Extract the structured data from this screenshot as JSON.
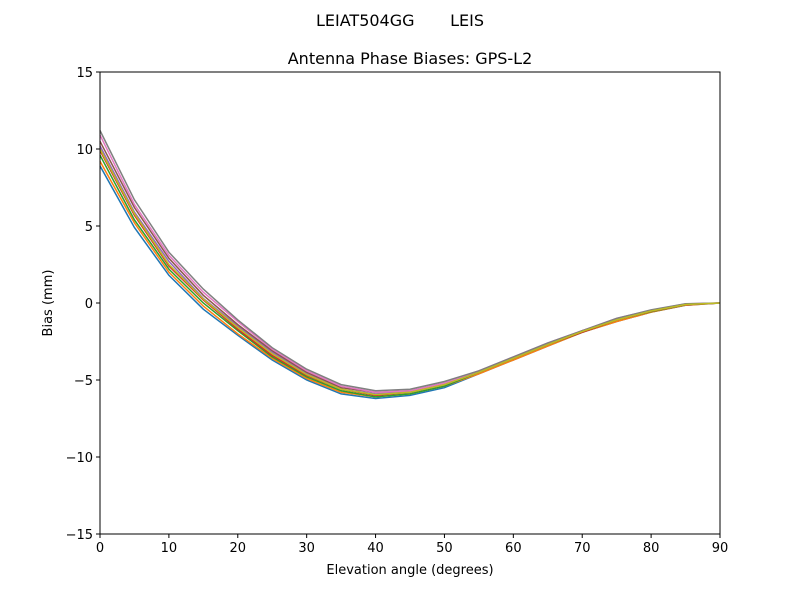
{
  "chart_data": {
    "type": "line",
    "suptitle": "LEIAT504GG       LEIS",
    "title": "Antenna Phase Biases: GPS-L2",
    "xlabel": "Elevation angle (degrees)",
    "ylabel": "Bias (mm)",
    "xlim": [
      0,
      90
    ],
    "ylim": [
      -15,
      15
    ],
    "xticks": [
      0,
      10,
      20,
      30,
      40,
      50,
      60,
      70,
      80,
      90
    ],
    "yticks": [
      -15,
      -10,
      -5,
      0,
      5,
      10,
      15
    ],
    "ytick_labels": [
      "−15",
      "−10",
      "−5",
      "0",
      "5",
      "10",
      "15"
    ],
    "grid": false,
    "x": [
      0,
      5,
      10,
      15,
      20,
      25,
      30,
      35,
      40,
      45,
      50,
      55,
      60,
      65,
      70,
      75,
      80,
      85,
      90
    ],
    "colors": [
      "#1f77b4",
      "#ff7f0e",
      "#2ca02c",
      "#d62728",
      "#9467bd",
      "#8c564b",
      "#e377c2",
      "#7f7f7f",
      "#bcbd22",
      "#17becf"
    ],
    "series": [
      {
        "values": [
          8.9,
          4.9,
          1.8,
          -0.4,
          -2.1,
          -3.7,
          -5.0,
          -5.9,
          -6.2,
          -6.0,
          -5.5,
          -4.6,
          -3.7,
          -2.8,
          -1.9,
          -1.2,
          -0.6,
          -0.15,
          0
        ]
      },
      {
        "values": [
          9.2,
          5.2,
          2.0,
          -0.2,
          -2.0,
          -3.6,
          -4.9,
          -5.8,
          -6.1,
          -5.9,
          -5.4,
          -4.6,
          -3.7,
          -2.8,
          -1.9,
          -1.2,
          -0.6,
          -0.14,
          0
        ]
      },
      {
        "values": [
          9.6,
          5.4,
          2.2,
          0.0,
          -1.8,
          -3.5,
          -4.8,
          -5.7,
          -6.1,
          -5.9,
          -5.4,
          -4.5,
          -3.6,
          -2.7,
          -1.9,
          -1.1,
          -0.56,
          -0.12,
          0
        ]
      },
      {
        "values": [
          9.9,
          5.7,
          2.4,
          0.2,
          -1.7,
          -3.4,
          -4.7,
          -5.6,
          -6.0,
          -5.8,
          -5.3,
          -4.5,
          -3.6,
          -2.7,
          -1.9,
          -1.1,
          -0.54,
          -0.11,
          0
        ]
      },
      {
        "values": [
          10.2,
          5.9,
          2.7,
          0.3,
          -1.5,
          -3.2,
          -4.6,
          -5.6,
          -5.9,
          -5.8,
          -5.3,
          -4.5,
          -3.6,
          -2.7,
          -1.8,
          -1.1,
          -0.51,
          -0.09,
          0
        ]
      },
      {
        "values": [
          10.5,
          6.2,
          2.9,
          0.5,
          -1.4,
          -3.1,
          -4.5,
          -5.5,
          -5.8,
          -5.7,
          -5.2,
          -4.5,
          -3.6,
          -2.7,
          -1.8,
          -1.1,
          -0.49,
          -0.08,
          0
        ]
      },
      {
        "values": [
          10.9,
          6.4,
          3.1,
          0.7,
          -1.2,
          -3.0,
          -4.4,
          -5.4,
          -5.8,
          -5.7,
          -5.2,
          -4.4,
          -3.5,
          -2.6,
          -1.8,
          -1.0,
          -0.47,
          -0.06,
          0
        ]
      },
      {
        "values": [
          11.2,
          6.7,
          3.3,
          0.9,
          -1.1,
          -2.9,
          -4.3,
          -5.3,
          -5.7,
          -5.6,
          -5.1,
          -4.4,
          -3.5,
          -2.6,
          -1.8,
          -1.0,
          -0.45,
          -0.05,
          0
        ]
      },
      {
        "values": [
          10.0,
          5.8,
          2.5,
          0.25,
          -1.6,
          -3.3,
          -4.65,
          -5.6,
          -5.95,
          -5.8,
          -5.3,
          -4.5,
          -3.6,
          -2.7,
          -1.85,
          -1.1,
          -0.52,
          -0.1,
          0
        ]
      }
    ]
  }
}
